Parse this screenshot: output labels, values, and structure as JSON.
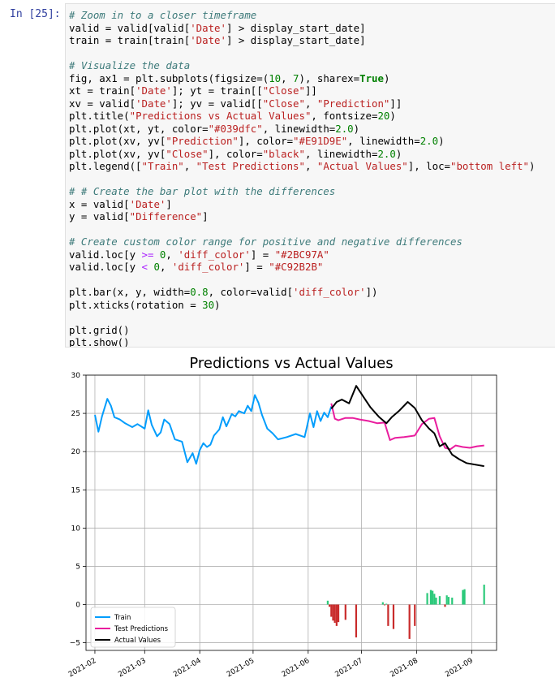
{
  "cell": {
    "prompt": "In [25]:",
    "lines": [
      [
        {
          "t": "# Zoom in to a closer timeframe",
          "c": "c"
        }
      ],
      [
        {
          "t": "valid = valid[valid["
        },
        {
          "t": "'Date'",
          "c": "s"
        },
        {
          "t": "] > display_start_date]"
        }
      ],
      [
        {
          "t": "train = train[train["
        },
        {
          "t": "'Date'",
          "c": "s"
        },
        {
          "t": "] > display_start_date]"
        }
      ],
      [],
      [
        {
          "t": "# Visualize the data",
          "c": "c"
        }
      ],
      [
        {
          "t": "fig, ax1 = plt.subplots(figsize=("
        },
        {
          "t": "10",
          "c": "n"
        },
        {
          "t": ", "
        },
        {
          "t": "7",
          "c": "n"
        },
        {
          "t": "), sharex="
        },
        {
          "t": "True",
          "c": "k"
        },
        {
          "t": ")"
        }
      ],
      [
        {
          "t": "xt = train["
        },
        {
          "t": "'Date'",
          "c": "s"
        },
        {
          "t": "]; yt = train[["
        },
        {
          "t": "\"Close\"",
          "c": "s"
        },
        {
          "t": "]]"
        }
      ],
      [
        {
          "t": "xv = valid["
        },
        {
          "t": "'Date'",
          "c": "s"
        },
        {
          "t": "]; yv = valid[["
        },
        {
          "t": "\"Close\"",
          "c": "s"
        },
        {
          "t": ", "
        },
        {
          "t": "\"Prediction\"",
          "c": "s"
        },
        {
          "t": "]]"
        }
      ],
      [
        {
          "t": "plt.title("
        },
        {
          "t": "\"Predictions vs Actual Values\"",
          "c": "s"
        },
        {
          "t": ", fontsize="
        },
        {
          "t": "20",
          "c": "n"
        },
        {
          "t": ")"
        }
      ],
      [
        {
          "t": "plt.plot(xt, yt, color="
        },
        {
          "t": "\"#039dfc\"",
          "c": "s"
        },
        {
          "t": ", linewidth="
        },
        {
          "t": "2.0",
          "c": "n"
        },
        {
          "t": ")"
        }
      ],
      [
        {
          "t": "plt.plot(xv, yv["
        },
        {
          "t": "\"Prediction\"",
          "c": "s"
        },
        {
          "t": "], color="
        },
        {
          "t": "\"#E91D9E\"",
          "c": "s"
        },
        {
          "t": ", linewidth="
        },
        {
          "t": "2.0",
          "c": "n"
        },
        {
          "t": ")"
        }
      ],
      [
        {
          "t": "plt.plot(xv, yv["
        },
        {
          "t": "\"Close\"",
          "c": "s"
        },
        {
          "t": "], color="
        },
        {
          "t": "\"black\"",
          "c": "s"
        },
        {
          "t": ", linewidth="
        },
        {
          "t": "2.0",
          "c": "n"
        },
        {
          "t": ")"
        }
      ],
      [
        {
          "t": "plt.legend(["
        },
        {
          "t": "\"Train\"",
          "c": "s"
        },
        {
          "t": ", "
        },
        {
          "t": "\"Test Predictions\"",
          "c": "s"
        },
        {
          "t": ", "
        },
        {
          "t": "\"Actual Values\"",
          "c": "s"
        },
        {
          "t": "], loc="
        },
        {
          "t": "\"bottom left\"",
          "c": "s"
        },
        {
          "t": ")"
        }
      ],
      [],
      [
        {
          "t": "# # Create the bar plot with the differences",
          "c": "c"
        }
      ],
      [
        {
          "t": "x = valid["
        },
        {
          "t": "'Date'",
          "c": "s"
        },
        {
          "t": "]"
        }
      ],
      [
        {
          "t": "y = valid["
        },
        {
          "t": "\"Difference\"",
          "c": "s"
        },
        {
          "t": "]"
        }
      ],
      [],
      [
        {
          "t": "# Create custom color range for positive and negative differences",
          "c": "c"
        }
      ],
      [
        {
          "t": "valid.loc[y "
        },
        {
          "t": ">=",
          "c": "o"
        },
        {
          "t": " "
        },
        {
          "t": "0",
          "c": "n"
        },
        {
          "t": ", "
        },
        {
          "t": "'diff_color'",
          "c": "s"
        },
        {
          "t": "] = "
        },
        {
          "t": "\"#2BC97A\"",
          "c": "s"
        }
      ],
      [
        {
          "t": "valid.loc[y "
        },
        {
          "t": "<",
          "c": "o"
        },
        {
          "t": " "
        },
        {
          "t": "0",
          "c": "n"
        },
        {
          "t": ", "
        },
        {
          "t": "'diff_color'",
          "c": "s"
        },
        {
          "t": "] = "
        },
        {
          "t": "\"#C92B2B\"",
          "c": "s"
        }
      ],
      [],
      [
        {
          "t": "plt.bar(x, y, width="
        },
        {
          "t": "0.8",
          "c": "n"
        },
        {
          "t": ", color=valid["
        },
        {
          "t": "'diff_color'",
          "c": "s"
        },
        {
          "t": "])"
        }
      ],
      [
        {
          "t": "plt.xticks(rotation = "
        },
        {
          "t": "30",
          "c": "n"
        },
        {
          "t": ")"
        }
      ],
      [],
      [
        {
          "t": "plt.grid()"
        }
      ],
      [
        {
          "t": "plt.show()"
        }
      ]
    ]
  },
  "chart_data": {
    "type": "line",
    "title": "Predictions vs Actual Values",
    "xlabel": "",
    "ylabel": "",
    "ylim": [
      -6,
      30
    ],
    "xlim": [
      "2021-01-27",
      "2021-09-15"
    ],
    "x_tick_labels": [
      "2021-02",
      "2021-03",
      "2021-04",
      "2021-05",
      "2021-06",
      "2021-07",
      "2021-08",
      "2021-09"
    ],
    "x_tick_dates": [
      "2021-02-01",
      "2021-03-01",
      "2021-04-01",
      "2021-05-01",
      "2021-06-01",
      "2021-07-01",
      "2021-08-01",
      "2021-09-01"
    ],
    "y_ticks": [
      -5,
      0,
      5,
      10,
      15,
      20,
      25,
      30
    ],
    "grid": true,
    "legend_position": "bottom-left",
    "series": [
      {
        "name": "Train",
        "color": "#039dfc",
        "x": [
          "2021-02-01",
          "2021-02-03",
          "2021-02-05",
          "2021-02-08",
          "2021-02-10",
          "2021-02-12",
          "2021-02-15",
          "2021-02-18",
          "2021-02-22",
          "2021-02-25",
          "2021-03-01",
          "2021-03-03",
          "2021-03-05",
          "2021-03-08",
          "2021-03-10",
          "2021-03-12",
          "2021-03-15",
          "2021-03-18",
          "2021-03-22",
          "2021-03-25",
          "2021-03-28",
          "2021-03-30",
          "2021-04-01",
          "2021-04-03",
          "2021-04-05",
          "2021-04-07",
          "2021-04-09",
          "2021-04-12",
          "2021-04-14",
          "2021-04-16",
          "2021-04-19",
          "2021-04-21",
          "2021-04-23",
          "2021-04-26",
          "2021-04-28",
          "2021-04-30",
          "2021-05-02",
          "2021-05-04",
          "2021-05-06",
          "2021-05-09",
          "2021-05-12",
          "2021-05-15",
          "2021-05-20",
          "2021-05-25",
          "2021-05-30",
          "2021-06-02",
          "2021-06-04",
          "2021-06-06",
          "2021-06-08",
          "2021-06-10",
          "2021-06-12",
          "2021-06-14"
        ],
        "values": [
          24.8,
          22.6,
          24.6,
          26.9,
          26.0,
          24.5,
          24.2,
          23.7,
          23.2,
          23.6,
          23.0,
          25.4,
          23.5,
          22.0,
          22.5,
          24.2,
          23.6,
          21.6,
          21.3,
          18.6,
          19.8,
          18.4,
          20.2,
          21.1,
          20.6,
          20.9,
          22.1,
          22.9,
          24.5,
          23.3,
          24.9,
          24.6,
          25.3,
          25.0,
          26.0,
          25.3,
          27.4,
          26.4,
          24.8,
          23.0,
          22.4,
          21.6,
          21.9,
          22.3,
          21.9,
          25.0,
          23.2,
          25.3,
          24.0,
          25.1,
          24.5,
          25.9
        ]
      },
      {
        "name": "Test Predictions",
        "color": "#E91D9E",
        "x": [
          "2021-06-14",
          "2021-06-16",
          "2021-06-18",
          "2021-06-22",
          "2021-06-26",
          "2021-06-30",
          "2021-07-05",
          "2021-07-10",
          "2021-07-14",
          "2021-07-17",
          "2021-07-20",
          "2021-07-25",
          "2021-07-31",
          "2021-08-04",
          "2021-08-08",
          "2021-08-11",
          "2021-08-14",
          "2021-08-17",
          "2021-08-20",
          "2021-08-23",
          "2021-08-27",
          "2021-08-31",
          "2021-09-04",
          "2021-09-08"
        ],
        "values": [
          26.3,
          24.3,
          24.1,
          24.4,
          24.4,
          24.2,
          24.0,
          23.7,
          23.8,
          21.5,
          21.8,
          21.9,
          22.1,
          23.6,
          24.3,
          24.4,
          22.0,
          20.5,
          20.3,
          20.8,
          20.6,
          20.5,
          20.7,
          20.8
        ]
      },
      {
        "name": "Actual Values",
        "color": "black",
        "x": [
          "2021-06-14",
          "2021-06-17",
          "2021-06-20",
          "2021-06-24",
          "2021-06-28",
          "2021-07-02",
          "2021-07-06",
          "2021-07-11",
          "2021-07-15",
          "2021-07-18",
          "2021-07-22",
          "2021-07-27",
          "2021-07-31",
          "2021-08-04",
          "2021-08-08",
          "2021-08-11",
          "2021-08-14",
          "2021-08-17",
          "2021-08-21",
          "2021-08-25",
          "2021-08-29",
          "2021-09-08"
        ],
        "values": [
          25.6,
          26.5,
          26.8,
          26.3,
          28.6,
          27.2,
          25.8,
          24.5,
          23.7,
          24.5,
          25.3,
          26.5,
          25.7,
          24.1,
          23.0,
          22.4,
          20.7,
          21.1,
          19.6,
          19.0,
          18.5,
          18.1
        ]
      }
    ],
    "bars": {
      "name": "Difference",
      "x": [
        "2021-06-12",
        "2021-06-13",
        "2021-06-14",
        "2021-06-15",
        "2021-06-16",
        "2021-06-17",
        "2021-06-18",
        "2021-06-22",
        "2021-06-28",
        "2021-07-13",
        "2021-07-14",
        "2021-07-15",
        "2021-07-16",
        "2021-07-19",
        "2021-07-28",
        "2021-07-31",
        "2021-08-07",
        "2021-08-09",
        "2021-08-10",
        "2021-08-11",
        "2021-08-12",
        "2021-08-14",
        "2021-08-17",
        "2021-08-18",
        "2021-08-19",
        "2021-08-21",
        "2021-08-27",
        "2021-08-28",
        "2021-09-08"
      ],
      "values": [
        0.5,
        -0.3,
        -1.6,
        -2.1,
        -2.4,
        -2.8,
        -2.3,
        -2.0,
        -4.3,
        0.3,
        -0.1,
        0.1,
        -2.8,
        -3.2,
        -4.5,
        -2.8,
        1.5,
        1.9,
        1.8,
        1.4,
        0.9,
        1.1,
        -0.3,
        1.2,
        1.0,
        0.9,
        1.9,
        2.0,
        2.6
      ],
      "positive_color": "#2BC97A",
      "negative_color": "#C92B2B"
    }
  }
}
